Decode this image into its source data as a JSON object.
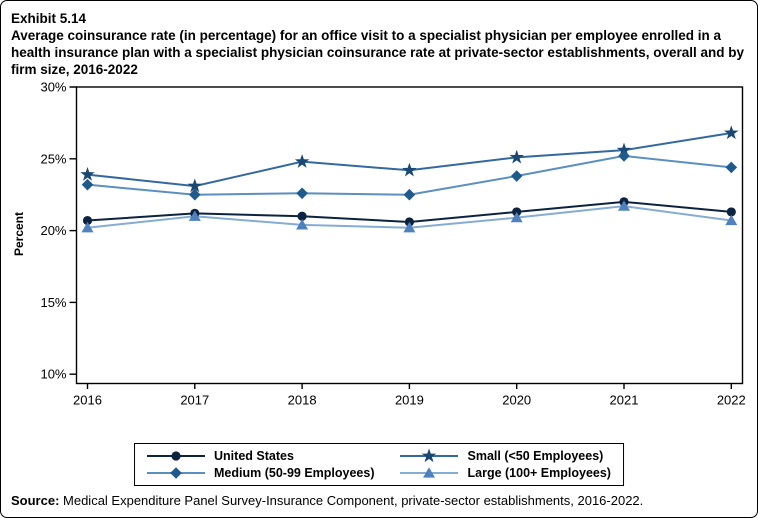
{
  "header": {
    "exhibit_label": "Exhibit 5.14",
    "title": "Average coinsurance rate (in percentage) for an office visit to a specialist physician per employee enrolled in a health insurance plan with a specialist physician coinsurance rate at private-sector establishments, overall and by firm size, 2016-2022"
  },
  "source": {
    "prefix": "Source:",
    "text": " Medical Expenditure Panel Survey-Insurance Component, private-sector establishments, 2016-2022."
  },
  "chart_data": {
    "type": "line",
    "title": "Average coinsurance rate (in percentage) for an office visit to a specialist physician per employee enrolled in a health insurance plan with a specialist physician coinsurance rate at private-sector establishments, overall and by firm size, 2016-2022",
    "xlabel": "",
    "ylabel": "Percent",
    "categories": [
      "2016",
      "2017",
      "2018",
      "2019",
      "2020",
      "2021",
      "2022"
    ],
    "yticks": [
      10,
      15,
      20,
      25,
      30
    ],
    "ytick_format": "percent",
    "ylim": [
      9.4,
      30
    ],
    "grid": false,
    "legend_position": "bottom",
    "series": [
      {
        "name": "United States",
        "marker": "circle",
        "color": "#0c2340",
        "line_color": "#0c2340",
        "values": [
          20.7,
          21.2,
          21.0,
          20.6,
          21.3,
          22.0,
          21.3
        ]
      },
      {
        "name": "Small (<50 Employees)",
        "marker": "star",
        "color": "#1b4872",
        "line_color": "#33699e",
        "values": [
          23.9,
          23.1,
          24.8,
          24.2,
          25.1,
          25.6,
          26.8
        ]
      },
      {
        "name": "Medium (50-99 Employees)",
        "marker": "diamond",
        "color": "#1f5a8d",
        "line_color": "#5b8fc0",
        "values": [
          23.2,
          22.5,
          22.6,
          22.5,
          23.8,
          25.2,
          24.4
        ]
      },
      {
        "name": "Large (100+ Employees)",
        "marker": "triangle",
        "color": "#4f81bd",
        "line_color": "#85acd3",
        "values": [
          20.2,
          21.0,
          20.4,
          20.2,
          20.9,
          21.7,
          20.7
        ]
      }
    ]
  }
}
